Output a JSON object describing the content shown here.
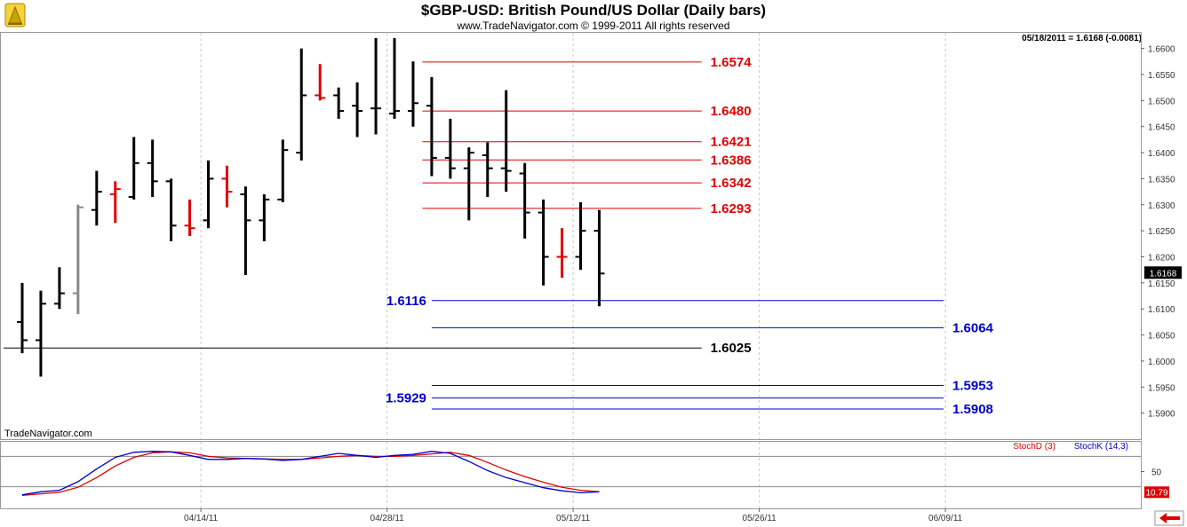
{
  "header": {
    "title": "$GBP-USD:  British Pound/US Dollar  (Daily bars)",
    "copyright": "www.TradeNavigator.com © 1999-2011 All rights reserved",
    "last_quote": "05/18/2011 = 1.6168 (-0.0081)",
    "brand": "TradeNavigator.com"
  },
  "colors": {
    "bar": "#000000",
    "bar_red": "#e00000",
    "bar_gray": "#888888",
    "resistance": "#e00000",
    "support": "#0000cc",
    "pivot": "#000000",
    "stochD": "#e00000",
    "stochK": "#0000cc"
  },
  "chart_data": {
    "type": "ohlc",
    "y_axis": {
      "min": 1.585,
      "max": 1.663,
      "ticks": [
        "1.6600",
        "1.6550",
        "1.6500",
        "1.6450",
        "1.6400",
        "1.6350",
        "1.6300",
        "1.6250",
        "1.6200",
        "1.6150",
        "1.6100",
        "1.6050",
        "1.6000",
        "1.5950",
        "1.5900"
      ],
      "last_value_label": "1.6168"
    },
    "x_axis": {
      "tick_labels": [
        {
          "label": "04/14/11",
          "slot": 9.6
        },
        {
          "label": "04/28/11",
          "slot": 19.6
        },
        {
          "label": "05/12/11",
          "slot": 29.6
        },
        {
          "label": "05/26/11",
          "slot": 39.6
        },
        {
          "label": "06/09/11",
          "slot": 49.6
        }
      ]
    },
    "bars": [
      {
        "o": 1.6075,
        "h": 1.615,
        "l": 1.6015,
        "c": 1.604,
        "color": "black"
      },
      {
        "o": 1.604,
        "h": 1.6135,
        "l": 1.597,
        "c": 1.611,
        "color": "black"
      },
      {
        "o": 1.611,
        "h": 1.618,
        "l": 1.61,
        "c": 1.613,
        "color": "black"
      },
      {
        "o": 1.613,
        "h": 1.63,
        "l": 1.609,
        "c": 1.6295,
        "color": "gray"
      },
      {
        "o": 1.629,
        "h": 1.6365,
        "l": 1.626,
        "c": 1.6325,
        "color": "black"
      },
      {
        "o": 1.632,
        "h": 1.6345,
        "l": 1.6265,
        "c": 1.633,
        "color": "red"
      },
      {
        "o": 1.6315,
        "h": 1.643,
        "l": 1.631,
        "c": 1.638,
        "color": "black"
      },
      {
        "o": 1.638,
        "h": 1.6425,
        "l": 1.6315,
        "c": 1.6345,
        "color": "black"
      },
      {
        "o": 1.6345,
        "h": 1.635,
        "l": 1.623,
        "c": 1.626,
        "color": "black"
      },
      {
        "o": 1.626,
        "h": 1.631,
        "l": 1.624,
        "c": 1.6255,
        "color": "red"
      },
      {
        "o": 1.627,
        "h": 1.6385,
        "l": 1.6255,
        "c": 1.635,
        "color": "black"
      },
      {
        "o": 1.635,
        "h": 1.6375,
        "l": 1.6295,
        "c": 1.6325,
        "color": "red"
      },
      {
        "o": 1.632,
        "h": 1.6335,
        "l": 1.6165,
        "c": 1.627,
        "color": "black"
      },
      {
        "o": 1.627,
        "h": 1.632,
        "l": 1.623,
        "c": 1.631,
        "color": "black"
      },
      {
        "o": 1.631,
        "h": 1.6425,
        "l": 1.6305,
        "c": 1.6405,
        "color": "black"
      },
      {
        "o": 1.64,
        "h": 1.66,
        "l": 1.6385,
        "c": 1.651,
        "color": "black"
      },
      {
        "o": 1.651,
        "h": 1.657,
        "l": 1.65,
        "c": 1.6505,
        "color": "red"
      },
      {
        "o": 1.651,
        "h": 1.6525,
        "l": 1.6465,
        "c": 1.648,
        "color": "black"
      },
      {
        "o": 1.649,
        "h": 1.6535,
        "l": 1.643,
        "c": 1.648,
        "color": "black"
      },
      {
        "o": 1.6485,
        "h": 1.662,
        "l": 1.6435,
        "c": 1.6485,
        "color": "black"
      },
      {
        "o": 1.6475,
        "h": 1.662,
        "l": 1.6465,
        "c": 1.648,
        "color": "black"
      },
      {
        "o": 1.648,
        "h": 1.6575,
        "l": 1.645,
        "c": 1.6495,
        "color": "black"
      },
      {
        "o": 1.649,
        "h": 1.6545,
        "l": 1.6355,
        "c": 1.639,
        "color": "black"
      },
      {
        "o": 1.639,
        "h": 1.6465,
        "l": 1.635,
        "c": 1.637,
        "color": "black"
      },
      {
        "o": 1.637,
        "h": 1.641,
        "l": 1.627,
        "c": 1.64,
        "color": "black"
      },
      {
        "o": 1.6395,
        "h": 1.642,
        "l": 1.6315,
        "c": 1.637,
        "color": "black"
      },
      {
        "o": 1.637,
        "h": 1.652,
        "l": 1.6325,
        "c": 1.6365,
        "color": "black"
      },
      {
        "o": 1.636,
        "h": 1.638,
        "l": 1.6235,
        "c": 1.6285,
        "color": "black"
      },
      {
        "o": 1.6285,
        "h": 1.631,
        "l": 1.6145,
        "c": 1.62,
        "color": "black"
      },
      {
        "o": 1.62,
        "h": 1.6255,
        "l": 1.616,
        "c": 1.62,
        "color": "red"
      },
      {
        "o": 1.62,
        "h": 1.6305,
        "l": 1.6175,
        "c": 1.625,
        "color": "black"
      },
      {
        "o": 1.625,
        "h": 1.629,
        "l": 1.6105,
        "c": 1.6168,
        "color": "black"
      }
    ],
    "levels": [
      {
        "value": 1.6574,
        "label": "1.6574",
        "kind": "resistance",
        "from": 21.5,
        "to": 36.5,
        "label_side": "right"
      },
      {
        "value": 1.648,
        "label": "1.6480",
        "kind": "resistance",
        "from": 21.5,
        "to": 36.5,
        "label_side": "right"
      },
      {
        "value": 1.6421,
        "label": "1.6421",
        "kind": "resistance",
        "from": 21.5,
        "to": 36.5,
        "label_side": "right"
      },
      {
        "value": 1.6386,
        "label": "1.6386",
        "kind": "resistance",
        "from": 21.5,
        "to": 36.5,
        "label_side": "right"
      },
      {
        "value": 1.6342,
        "label": "1.6342",
        "kind": "resistance",
        "from": 21.5,
        "to": 36.5,
        "label_side": "right"
      },
      {
        "value": 1.6293,
        "label": "1.6293",
        "kind": "resistance",
        "from": 21.5,
        "to": 36.5,
        "label_side": "right"
      },
      {
        "value": 1.6116,
        "label": "1.6116",
        "kind": "support",
        "from": 22.0,
        "to": 49.5,
        "label_side": "left"
      },
      {
        "value": 1.6064,
        "label": "1.6064",
        "kind": "support",
        "from": 22.0,
        "to": 49.5,
        "label_side": "right"
      },
      {
        "value": 1.6025,
        "label": "1.6025",
        "kind": "pivot",
        "from": -1.0,
        "to": 36.5,
        "label_side": "right"
      },
      {
        "value": 1.5953,
        "label": "1.5953",
        "kind": "support",
        "from": 22.0,
        "to": 49.5,
        "label_side": "right"
      },
      {
        "value": 1.5929,
        "label": "1.5929",
        "kind": "support",
        "from": 22.0,
        "to": 49.5,
        "label_side": "left"
      },
      {
        "value": 1.5908,
        "label": "1.5908",
        "kind": "support",
        "from": 22.0,
        "to": 49.5,
        "label_side": "right"
      }
    ],
    "stochastic": {
      "ymin": 0,
      "ymax": 100,
      "tick": "50",
      "last_value_label": "10.79",
      "legend_d": "StochD (3)",
      "legend_k": "StochK (14,3)",
      "stochK": [
        4,
        10,
        13,
        30,
        55,
        78,
        88,
        90,
        89,
        82,
        74,
        74,
        76,
        75,
        72,
        74,
        80,
        86,
        82,
        78,
        82,
        84,
        90,
        86,
        70,
        52,
        38,
        28,
        18,
        12,
        8,
        10
      ],
      "stochD": [
        3,
        6,
        9,
        19,
        38,
        61,
        78,
        87,
        89,
        87,
        80,
        77,
        76,
        75,
        74,
        74,
        77,
        80,
        82,
        80,
        80,
        82,
        85,
        88,
        82,
        68,
        53,
        40,
        29,
        19,
        13,
        10
      ]
    }
  }
}
